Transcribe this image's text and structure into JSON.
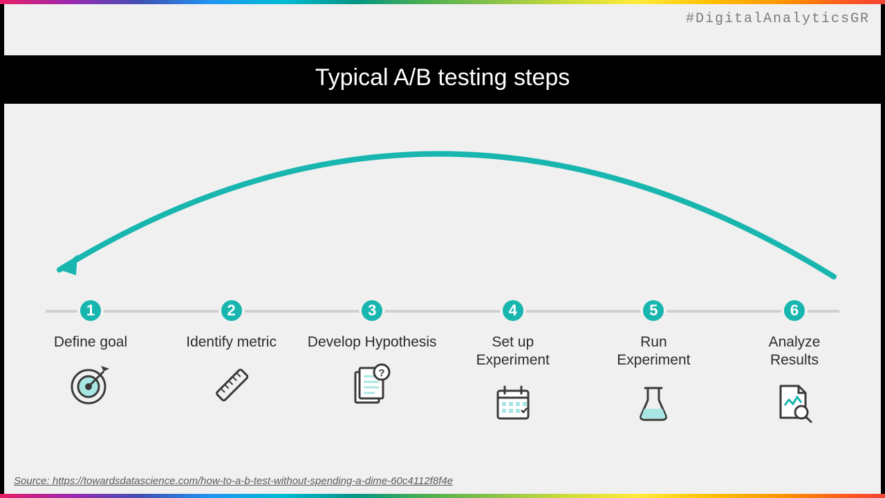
{
  "hashtag": "#DigitalAnalyticsGR",
  "title": "Typical A/B testing steps",
  "source_label": "Source: https://towardsdatascience.com/how-to-a-b-test-without-spending-a-dime-60c4112f8f4e",
  "colors": {
    "accent": "#19b6b0",
    "accent_fill": "#a8e6e3",
    "icon_stroke": "#3a3a3a",
    "connector": "#d0d0d0",
    "background": "#f0f0f0",
    "title_bg": "#000000",
    "title_fg": "#ffffff",
    "hashtag_fg": "#7a7a7a",
    "source_fg": "#5a5a5a"
  },
  "arc": {
    "stroke_width": 8,
    "arrowhead_size": 18
  },
  "steps": [
    {
      "num": "1",
      "label": "Define goal",
      "icon": "target"
    },
    {
      "num": "2",
      "label": "Identify metric",
      "icon": "ruler"
    },
    {
      "num": "3",
      "label": "Develop Hypothesis",
      "icon": "document-question"
    },
    {
      "num": "4",
      "label": "Set up\nExperiment",
      "icon": "calendar"
    },
    {
      "num": "5",
      "label": "Run\nExperiment",
      "icon": "flask"
    },
    {
      "num": "6",
      "label": "Analyze\nResults",
      "icon": "file-search"
    }
  ],
  "typography": {
    "title_fontsize": 34,
    "title_weight": 300,
    "step_label_fontsize": 21,
    "badge_fontsize": 22,
    "hashtag_fontsize": 20,
    "source_fontsize": 15
  }
}
